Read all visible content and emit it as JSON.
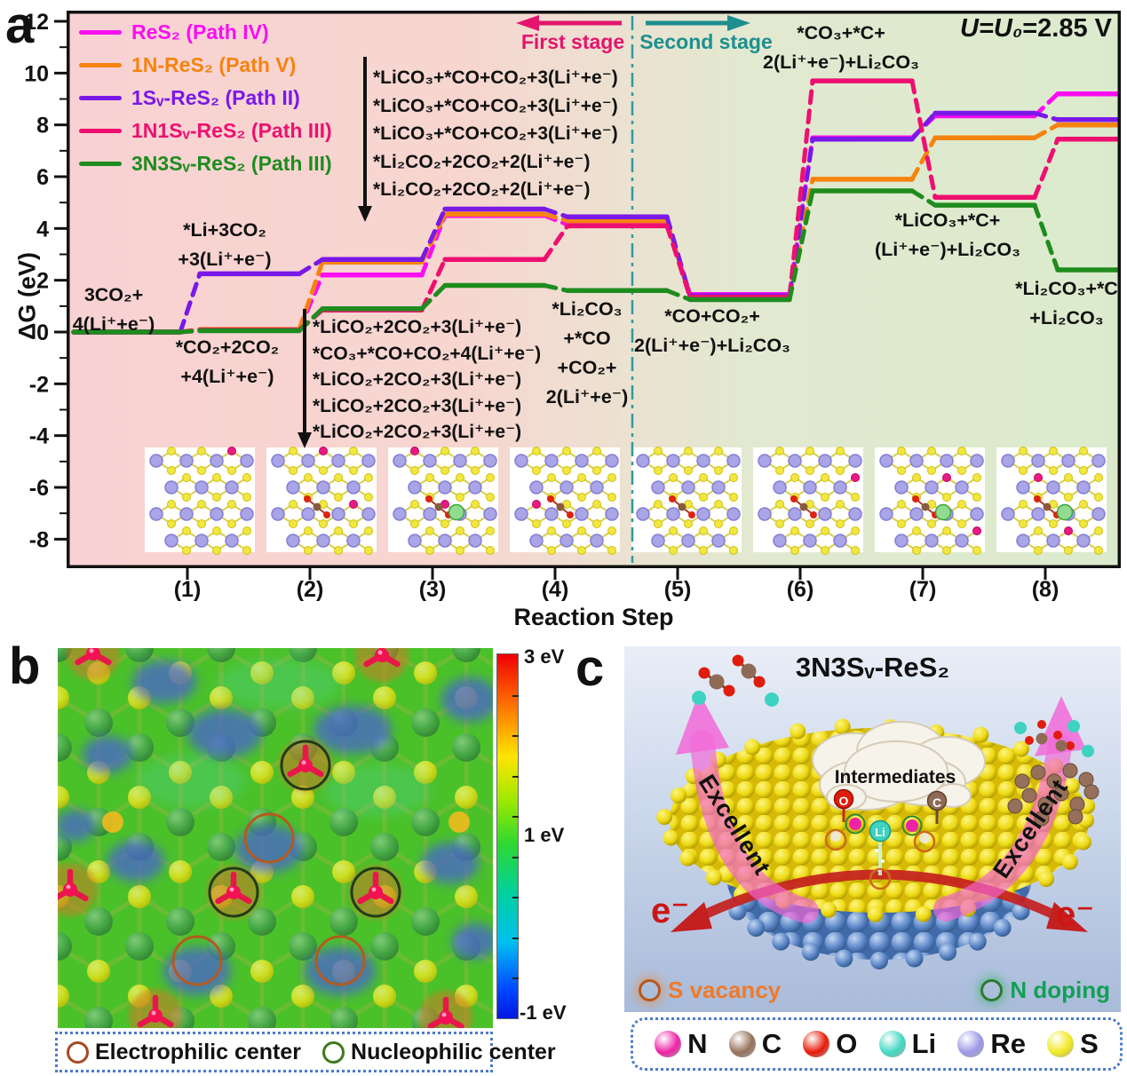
{
  "panel_a": {
    "label": "a",
    "ylabel": "ΔG (eV)",
    "xlabel": "Reaction Step",
    "potential_prefix": "U=U₀",
    "potential_value": "=2.85 V",
    "first_stage": "First stage",
    "second_stage": "Second stage",
    "stage_colors": {
      "first": "#e4156e",
      "second": "#1d8f8f"
    },
    "upper_annotations": [
      "*LiCO₃+*CO+CO₂+3(Li⁺+e⁻)",
      "*LiCO₃+*CO+CO₂+3(Li⁺+e⁻)",
      "*LiCO₃+*CO+CO₂+3(Li⁺+e⁻)",
      "*Li₂CO₂+2CO₂+2(Li⁺+e⁻)",
      "*Li₂CO₂+2CO₂+2(Li⁺+e⁻)"
    ],
    "lower_annotations": [
      "*LiCO₂+2CO₂+3(Li⁺+e⁻)",
      "*CO₃+*CO+CO₂+4(Li⁺+e⁻)",
      "*LiCO₂+2CO₂+3(Li⁺+e⁻)",
      "*LiCO₂+2CO₂+3(Li⁺+e⁻)",
      "*LiCO₂+2CO₂+3(Li⁺+e⁻)"
    ],
    "state_labels": [
      {
        "id": "state-0",
        "lines": [
          "3CO₂+",
          "4(Li⁺+e⁻)"
        ]
      },
      {
        "id": "state-1-upper",
        "lines": [
          "*Li+3CO₂",
          "+3(Li⁺+e⁻)"
        ]
      },
      {
        "id": "state-1-lower",
        "lines": [
          "*CO₂+2CO₂",
          "+4(Li⁺+e⁻)"
        ]
      },
      {
        "id": "state-4",
        "lines": [
          "*Li₂CO₃",
          "+*CO",
          "+CO₂+",
          "2(Li⁺+e⁻)"
        ]
      },
      {
        "id": "state-5",
        "lines": [
          "*CO+CO₂+",
          "2(Li⁺+e⁻)+Li₂CO₃"
        ]
      },
      {
        "id": "state-6",
        "lines": [
          "*CO₃+*C+",
          "2(Li⁺+e⁻)+Li₂CO₃"
        ]
      },
      {
        "id": "state-7",
        "lines": [
          "*LiCO₃+*C+",
          "(Li⁺+e⁻)+Li₂CO₃"
        ]
      },
      {
        "id": "state-8",
        "lines": [
          "*Li₂CO₃+*C",
          "+Li₂CO₃"
        ]
      }
    ],
    "x_tick_labels": [
      "(1)",
      "(2)",
      "(3)",
      "(4)",
      "(5)",
      "(6)",
      "(7)",
      "(8)"
    ],
    "y_tick_labels": [
      "12",
      "10",
      "8",
      "6",
      "4",
      "2",
      "0",
      "-2",
      "-4",
      "-6",
      "-8"
    ]
  },
  "chart_data": {
    "type": "line",
    "subtype": "reaction-free-energy-diagram",
    "xlabel": "Reaction Step",
    "ylabel": "ΔG (eV)",
    "x_step_labels": [
      "(1)",
      "(2)",
      "(3)",
      "(4)",
      "(5)",
      "(6)",
      "(7)",
      "(8)"
    ],
    "n_states": 9,
    "ylim": [
      -9.2,
      12
    ],
    "y_major_ticks": [
      12,
      10,
      8,
      6,
      4,
      2,
      0,
      -2,
      -4,
      -6,
      -8
    ],
    "annotation": "U=U₀=2.85 V",
    "stage_labels": [
      "First stage",
      "Second stage"
    ],
    "stage_divider_between_states": [
      4,
      5
    ],
    "legend_position": "top-left",
    "series": [
      {
        "name": "ReS₂ (Path IV)",
        "color": "#fb0df2",
        "values": [
          0,
          0.1,
          2.2,
          4.5,
          4.15,
          1.45,
          7.5,
          8.35,
          9.2
        ]
      },
      {
        "name": "1N-ReS₂ (Path V)",
        "color": "#f6830e",
        "values": [
          0,
          0.1,
          2.7,
          4.55,
          4.3,
          1.35,
          5.9,
          7.5,
          8.0
        ]
      },
      {
        "name": "1Sᵥ-ReS₂ (Path II)",
        "color": "#7a18e8",
        "values": [
          0,
          2.25,
          2.8,
          4.75,
          4.45,
          1.4,
          7.45,
          8.45,
          8.2
        ]
      },
      {
        "name": "1N1Sᵥ-ReS₂ (Path III)",
        "color": "#ee1070",
        "values": [
          0,
          0.08,
          0.85,
          2.8,
          4.1,
          1.35,
          9.7,
          5.2,
          7.45
        ]
      },
      {
        "name": "3N3Sᵥ-ReS₂ (Path III)",
        "color": "#1e8c1e",
        "values": [
          0,
          0.05,
          0.9,
          1.8,
          1.6,
          1.25,
          5.45,
          4.9,
          2.4
        ]
      }
    ]
  },
  "panel_b": {
    "label": "b",
    "colorbar": {
      "labels": [
        {
          "text": "3 eV",
          "pos": "top"
        },
        {
          "text": "1 eV",
          "pos": "middle"
        },
        {
          "text": "-1 eV",
          "pos": "bottom"
        }
      ]
    },
    "legend": [
      {
        "label": "Electrophilic center",
        "ring_color": "#a34a22"
      },
      {
        "label": "Nucleophilic center",
        "ring_color": "#3e7a20"
      }
    ]
  },
  "panel_c": {
    "label": "c",
    "title": "3N3Sᵥ-ReS₂",
    "cloud_label": "Intermediates",
    "arrow_label_left": "Excellent",
    "arrow_label_right": "Excellent",
    "electron_label": "e⁻",
    "adsorbate_tags": [
      "O",
      "Li",
      "C"
    ],
    "site_badges": [
      {
        "label": "S vacancy",
        "text_color": "#f07a28",
        "ring_color": "#b8571a"
      },
      {
        "label": "N doping",
        "text_color": "#10a055",
        "ring_color": "#2e7a2e"
      }
    ],
    "element_legend": [
      {
        "symbol": "N",
        "color": "#ee22a6"
      },
      {
        "symbol": "C",
        "color": "#96705a"
      },
      {
        "symbol": "O",
        "color": "#e81a06"
      },
      {
        "symbol": "Li",
        "color": "#42d8c2"
      },
      {
        "symbol": "Re",
        "color": "#9c99e8"
      },
      {
        "symbol": "S",
        "color": "#f1e921"
      }
    ]
  }
}
